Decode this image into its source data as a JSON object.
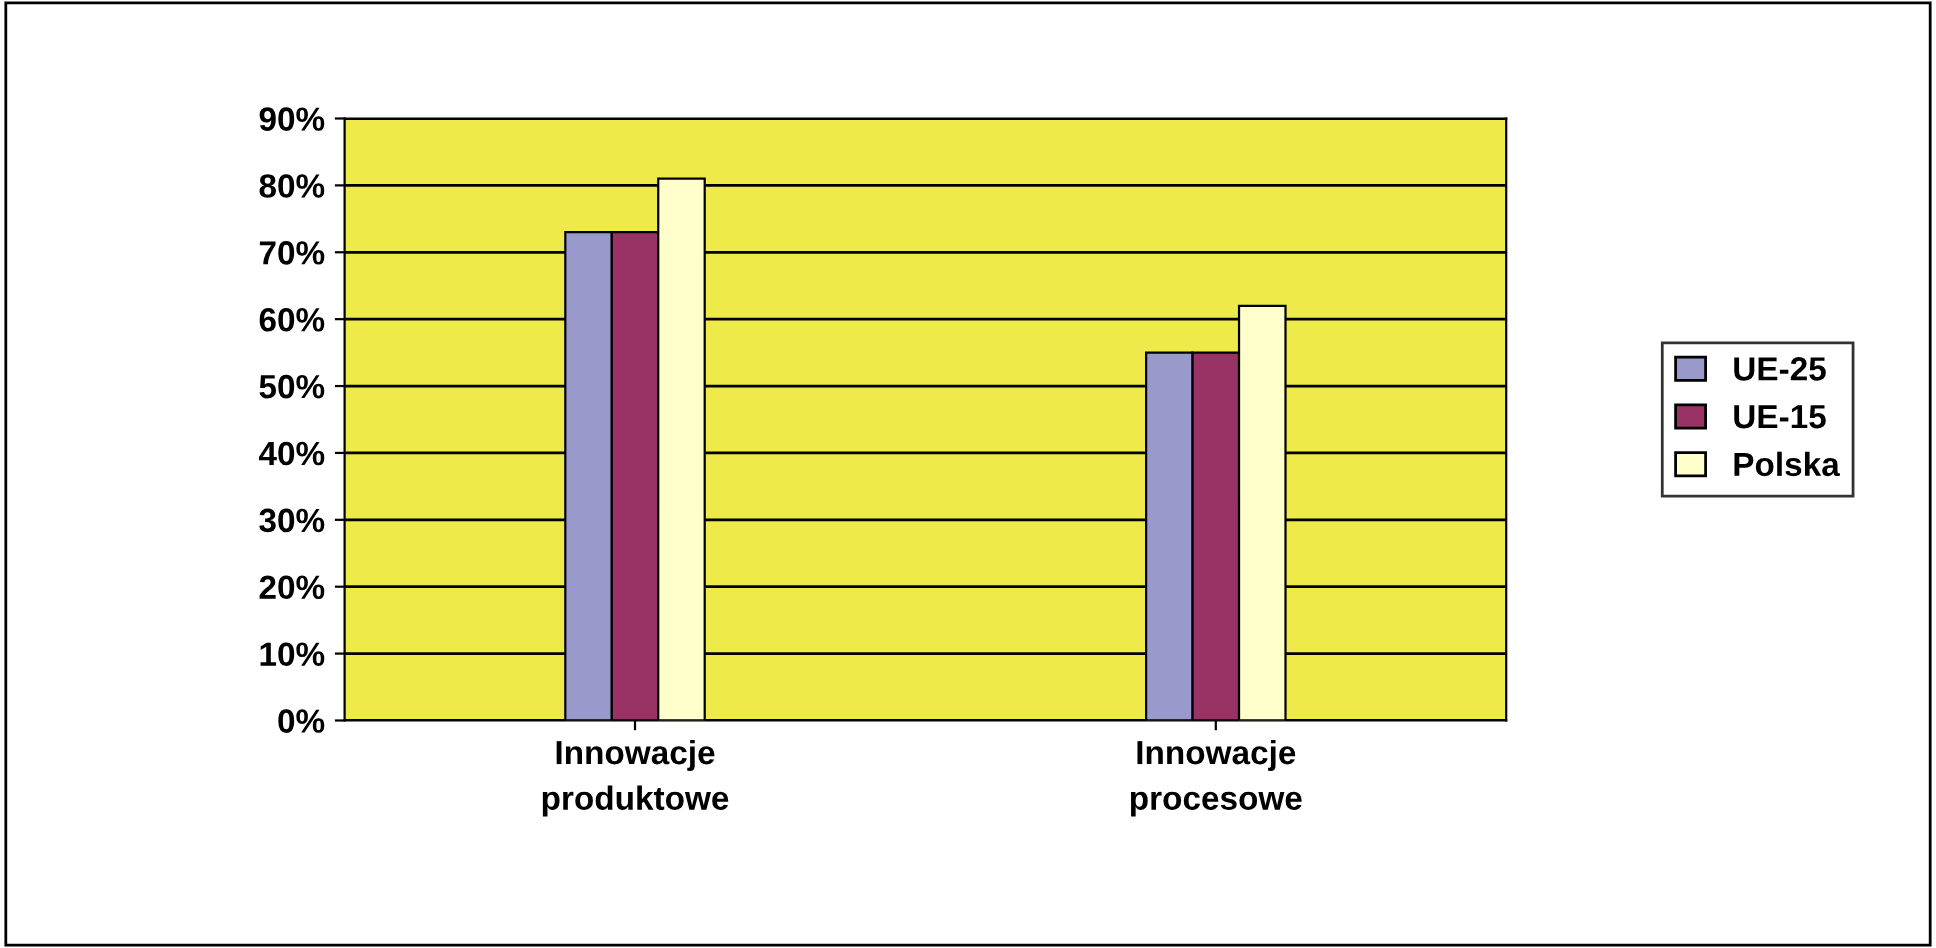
{
  "chart_data": {
    "type": "bar",
    "categories": [
      "Innowacje\nproduktowe",
      "Innowacje\nprocesowe"
    ],
    "series": [
      {
        "name": "UE-25",
        "color": "#9999cc",
        "values": [
          73,
          55
        ]
      },
      {
        "name": "UE-15",
        "color": "#993366",
        "values": [
          73,
          55
        ]
      },
      {
        "name": "Polska",
        "color": "#ffffcc",
        "values": [
          81,
          62
        ]
      }
    ],
    "ylim": [
      0,
      90
    ],
    "yticks": [
      {
        "value": 0,
        "label": "0%"
      },
      {
        "value": 10,
        "label": "10%"
      },
      {
        "value": 20,
        "label": "20%"
      },
      {
        "value": 30,
        "label": "30%"
      },
      {
        "value": 40,
        "label": "40%"
      },
      {
        "value": 50,
        "label": "50%"
      },
      {
        "value": 60,
        "label": "60%"
      },
      {
        "value": 70,
        "label": "70%"
      },
      {
        "value": 80,
        "label": "80%"
      },
      {
        "value": 90,
        "label": "90%"
      }
    ],
    "grid": "y",
    "legend": "right"
  }
}
